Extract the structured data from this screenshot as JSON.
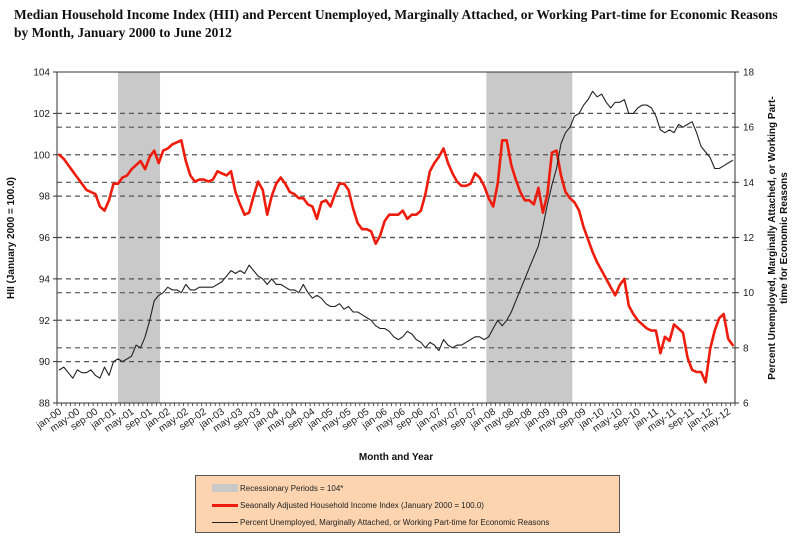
{
  "title": "Median Household Income Index (HII) and Percent Unemployed, Marginally Attached, or Working Part-time for Economic Reasons by Month, January 2000 to June 2012",
  "legend": {
    "items": [
      {
        "label": "Recessionary Periods = 104*",
        "type": "rect",
        "color": "#c9c9c9"
      },
      {
        "label": "Seaonally Adjusted Household Income Index (January 2000 = 100.0)",
        "type": "line",
        "color": "#ee1c0c"
      },
      {
        "label": "Percent Unemployed,  Marginally Attached, or Working Part-time for Economic Reasons",
        "type": "line",
        "color": "#222222"
      }
    ]
  },
  "chart_data": {
    "type": "line",
    "title": "Median Household Income Index (HII) and Percent Unemployed, Marginally Attached, or Working Part-time for Economic Reasons by Month, January 2000 to June 2012",
    "xlabel": "Month and Year",
    "ylabel": "HII (January 2000 = 100.0)",
    "y2label": "Percent Unemployed, Marginally Attached, or Working Part-time for Economic Reasons",
    "ylim": [
      88,
      104
    ],
    "y2lim": [
      6,
      18
    ],
    "yticks": [
      88,
      90,
      92,
      94,
      96,
      98,
      100,
      102,
      104
    ],
    "y2ticks": [
      6,
      8,
      10,
      12,
      14,
      16,
      18
    ],
    "grid": "horizontal dashed",
    "legend_position": "bottom",
    "n_months": 150,
    "x_tick_labels": [
      "jan-00",
      "may-00",
      "sep-00",
      "jan-01",
      "may-01",
      "sep-01",
      "jan-02",
      "may-02",
      "sep-02",
      "jan-03",
      "may-03",
      "sep-03",
      "jan-04",
      "may-04",
      "sep-04",
      "jan-05",
      "may-05",
      "sep-05",
      "jan-06",
      "may-06",
      "sep-06",
      "jan-07",
      "may-07",
      "sep-07",
      "jan-08",
      "may-08",
      "sep-08",
      "jan-09",
      "may-09",
      "sep-09",
      "jan-10",
      "may-10",
      "sep-10",
      "jan-11",
      "may-11",
      "sep-11",
      "jan-12",
      "may-12"
    ],
    "recessions": [
      {
        "start_month_index": 13.5,
        "end_month_index": 22.8,
        "value": 104
      },
      {
        "start_month_index": 95,
        "end_month_index": 114,
        "value": 104
      }
    ],
    "series": [
      {
        "name": "Seaonally Adjusted Household Income Index (January 2000 = 100.0)",
        "axis": "left",
        "color": "#ee1c0c",
        "values": [
          100.0,
          99.8,
          99.5,
          99.2,
          98.9,
          98.6,
          98.3,
          98.2,
          98.1,
          97.5,
          97.3,
          97.8,
          98.6,
          98.6,
          98.9,
          99.0,
          99.3,
          99.5,
          99.7,
          99.3,
          99.9,
          100.2,
          99.6,
          100.2,
          100.3,
          100.5,
          100.6,
          100.7,
          99.7,
          99.0,
          98.7,
          98.8,
          98.8,
          98.7,
          98.8,
          99.2,
          99.1,
          99.0,
          99.2,
          98.2,
          97.6,
          97.1,
          97.2,
          98.0,
          98.7,
          98.3,
          97.1,
          98.0,
          98.6,
          98.9,
          98.6,
          98.2,
          98.1,
          97.9,
          97.9,
          97.6,
          97.5,
          96.9,
          97.7,
          97.8,
          97.5,
          98.1,
          98.6,
          98.6,
          98.3,
          97.4,
          96.7,
          96.4,
          96.4,
          96.3,
          95.7,
          96.1,
          96.8,
          97.1,
          97.1,
          97.1,
          97.3,
          96.9,
          97.1,
          97.1,
          97.3,
          98.1,
          99.2,
          99.6,
          99.9,
          100.3,
          99.6,
          99.1,
          98.7,
          98.5,
          98.5,
          98.6,
          99.1,
          98.9,
          98.5,
          97.9,
          97.5,
          98.6,
          100.7,
          100.7,
          99.5,
          98.8,
          98.2,
          97.8,
          97.8,
          97.6,
          98.4,
          97.2,
          98.1,
          100.1,
          100.2,
          99.0,
          98.2,
          97.9,
          97.7,
          97.3,
          96.5,
          95.9,
          95.3,
          94.8,
          94.4,
          94.0,
          93.6,
          93.2,
          93.7,
          94.0,
          92.7,
          92.3,
          92.0,
          91.8,
          91.6,
          91.5,
          91.5,
          90.4,
          91.2,
          91.0,
          91.8,
          91.6,
          91.4,
          90.2,
          89.6,
          89.5,
          89.5,
          89.0,
          90.6,
          91.5,
          92.1,
          92.3,
          91.1,
          90.8
        ]
      },
      {
        "name": "Percent Unemployed,  Marginally Attached, or Working Part-time for Economic Reasons",
        "axis": "right",
        "color": "#222222",
        "values": [
          7.2,
          7.3,
          7.1,
          6.9,
          7.2,
          7.1,
          7.1,
          7.2,
          7.0,
          6.9,
          7.3,
          7.0,
          7.5,
          7.6,
          7.5,
          7.6,
          7.7,
          8.1,
          8.0,
          8.4,
          9.0,
          9.7,
          9.9,
          10.0,
          10.2,
          10.1,
          10.1,
          10.0,
          10.3,
          10.1,
          10.1,
          10.2,
          10.2,
          10.2,
          10.2,
          10.3,
          10.4,
          10.6,
          10.8,
          10.7,
          10.8,
          10.7,
          11.0,
          10.8,
          10.6,
          10.5,
          10.3,
          10.5,
          10.3,
          10.3,
          10.2,
          10.1,
          10.1,
          10.0,
          10.3,
          10.0,
          9.8,
          9.9,
          9.8,
          9.6,
          9.5,
          9.5,
          9.6,
          9.4,
          9.5,
          9.3,
          9.3,
          9.2,
          9.1,
          9.0,
          8.8,
          8.7,
          8.7,
          8.6,
          8.4,
          8.3,
          8.4,
          8.6,
          8.5,
          8.3,
          8.2,
          8.0,
          8.2,
          8.1,
          7.9,
          8.3,
          8.1,
          8.0,
          8.1,
          8.1,
          8.2,
          8.3,
          8.4,
          8.4,
          8.3,
          8.4,
          8.7,
          9.0,
          8.8,
          9.0,
          9.3,
          9.7,
          10.1,
          10.5,
          10.9,
          11.3,
          11.7,
          12.4,
          13.2,
          13.9,
          14.5,
          15.4,
          15.8,
          16.0,
          16.4,
          16.5,
          16.8,
          17.0,
          17.3,
          17.1,
          17.2,
          16.9,
          16.7,
          16.9,
          16.9,
          17.0,
          16.5,
          16.5,
          16.7,
          16.8,
          16.8,
          16.7,
          16.4,
          15.9,
          15.8,
          15.9,
          15.8,
          16.1,
          16.0,
          16.1,
          16.2,
          15.8,
          15.3,
          15.1,
          14.9,
          14.5,
          14.5,
          14.6,
          14.7,
          14.8
        ]
      }
    ]
  }
}
